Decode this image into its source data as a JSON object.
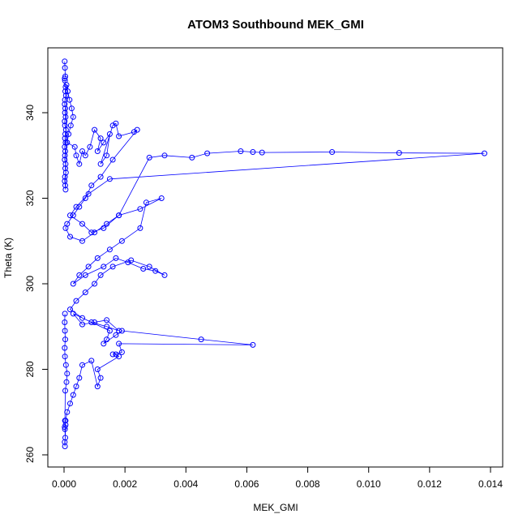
{
  "chart_data": {
    "type": "scatter",
    "title": "ATOM3 Southbound MEK_GMI",
    "xlabel": "MEK_GMI",
    "ylabel": "Theta (K)",
    "xlim": [
      0,
      0.014
    ],
    "ylim": [
      260,
      350
    ],
    "xticks": [
      "0.000",
      "0.002",
      "0.004",
      "0.006",
      "0.008",
      "0.010",
      "0.012",
      "0.014"
    ],
    "yticks": [
      "260",
      "280",
      "300",
      "320",
      "340"
    ],
    "legend": "none",
    "grid": false,
    "color": "#0000ff",
    "markers": "open-circle-with-connecting-lines",
    "series": [
      {
        "x": [
          2e-05,
          3e-05,
          4e-05,
          2e-05,
          3e-05,
          5e-05,
          4e-05,
          6e-05,
          3e-05,
          2e-05,
          4e-05,
          3e-05,
          5e-05,
          2e-05,
          3e-05,
          6e-05,
          4e-05,
          3e-05,
          5e-05,
          2e-05,
          4e-05,
          3e-05,
          2e-05,
          5e-05,
          4e-05,
          6e-05,
          3e-05,
          2e-05,
          4e-05,
          5e-05,
          8e-05,
          0.00012,
          0.00018,
          0.00025,
          0.0003,
          0.00022,
          0.00015,
          0.0001,
          0.00035,
          0.0004,
          0.0005,
          0.0006,
          0.0007,
          0.00085,
          0.001,
          0.0012,
          0.0011,
          0.0013,
          0.0015,
          0.0014,
          0.0012,
          0.0016,
          0.0017,
          0.0018,
          0.0023,
          0.0024,
          0.0016,
          0.0012,
          0.0009,
          0.0007,
          0.0005,
          0.0003,
          0.0001,
          5e-05,
          0.0002,
          0.0006,
          0.001,
          0.0014,
          0.0018,
          0.0028,
          0.0033,
          0.0042,
          0.0047,
          0.0058,
          0.0062,
          0.0065,
          0.0088,
          0.011,
          0.0138,
          0.0015,
          0.0008,
          0.0004,
          0.0002,
          0.0006,
          0.0009,
          0.0013,
          0.0018,
          0.0025,
          0.0032,
          0.0027,
          0.0025,
          0.0019,
          0.0015,
          0.0011,
          0.0008,
          0.0005,
          0.0003,
          0.0007,
          0.0013,
          0.0017,
          0.0021,
          0.0026,
          0.003,
          0.0033,
          0.0028,
          0.0022,
          0.0016,
          0.0012,
          0.001,
          0.0007,
          0.0004,
          0.0002,
          0.0006,
          0.0009,
          0.0014,
          0.0018,
          0.0014,
          0.001,
          0.0006,
          0.0003,
          0.0015,
          0.0014,
          0.0013,
          0.0017,
          0.0019,
          0.0045,
          0.0062,
          0.0018,
          0.0019,
          0.0016,
          0.0017,
          0.0018,
          0.0011,
          0.0012,
          0.0011,
          0.0009,
          0.0006,
          0.0005,
          0.0004,
          0.0003,
          0.0002,
          0.0001,
          5e-05,
          3e-05,
          4e-05,
          2e-05,
          3e-05,
          5e-05,
          2e-05,
          3e-05,
          4e-05,
          8e-05,
          0.0001,
          6e-05,
          3e-05,
          2e-05,
          4e-05,
          3e-05,
          2e-05,
          3e-05
        ],
        "y": [
          352,
          350.5,
          348.5,
          348,
          347.5,
          346,
          345,
          344,
          343,
          342,
          341,
          340,
          339,
          338,
          337,
          336,
          335,
          334,
          333,
          332,
          331,
          330,
          329,
          328,
          327,
          326,
          325,
          324,
          323,
          322,
          346.5,
          345,
          343,
          341,
          339,
          337,
          335,
          333,
          332,
          330,
          328,
          331,
          330,
          332,
          336,
          334,
          331,
          333,
          335,
          330,
          328,
          337,
          337.5,
          334.5,
          335.5,
          336,
          329,
          325,
          323,
          320,
          318,
          316,
          314,
          313,
          311,
          310,
          312,
          314,
          316,
          329.5,
          330,
          329.5,
          330.5,
          331,
          330.8,
          330.7,
          330.8,
          330.6,
          330.5,
          324.5,
          321,
          318,
          316,
          314,
          312,
          313,
          316,
          317.5,
          320,
          319,
          313,
          310,
          308,
          306,
          304,
          302,
          300,
          302,
          304,
          306,
          305,
          303.5,
          303,
          302,
          304,
          305.5,
          304,
          302,
          300,
          298,
          296,
          294,
          292,
          291,
          290,
          289,
          291.5,
          291,
          290.5,
          293,
          289,
          287,
          286,
          288,
          289,
          287,
          285.7,
          286,
          284,
          283.5,
          283.5,
          283,
          280,
          278,
          276,
          282,
          281,
          278,
          276,
          274,
          272,
          270,
          268,
          266,
          264,
          263,
          262,
          267,
          266.5,
          268,
          275,
          277,
          279,
          281,
          283,
          285,
          287,
          289,
          291,
          293
        ]
      }
    ]
  }
}
